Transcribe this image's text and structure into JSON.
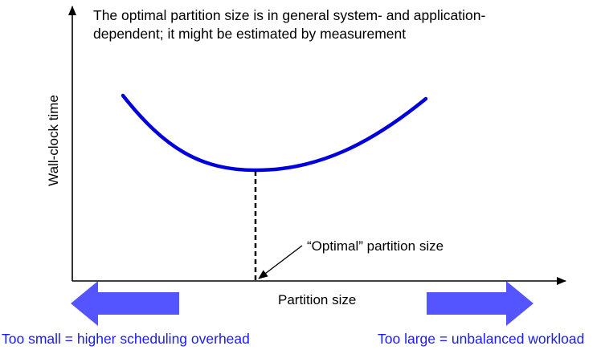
{
  "caption": {
    "line1": "The optimal partition size is in general system- and application-",
    "line2": "dependent; it might be estimated by measurement"
  },
  "axes": {
    "y_label": "Wall-clock time",
    "x_label": "Partition size"
  },
  "annotation": {
    "optimal_label": "“Optimal” partition size"
  },
  "notes": {
    "too_small": "Too small = higher scheduling overhead",
    "too_large": "Too large = unbalanced workload"
  },
  "colors": {
    "curve": "#0000dd",
    "arrows": "#5555ff",
    "notes_text": "#1a1aff",
    "axes": "#000000"
  }
}
